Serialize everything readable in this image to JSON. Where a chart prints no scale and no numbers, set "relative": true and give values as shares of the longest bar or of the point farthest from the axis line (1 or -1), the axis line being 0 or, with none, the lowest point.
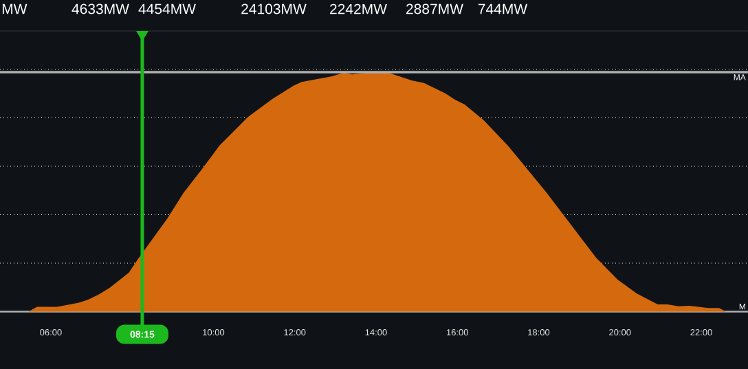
{
  "chart_data": {
    "type": "area",
    "relative": true,
    "color": "#d4690e",
    "grid": "y",
    "tick_labels": "x",
    "x": [
      5.45,
      5.66,
      6.16,
      6.69,
      6.92,
      7.18,
      7.45,
      7.92,
      8.15,
      8.86,
      9.26,
      9.74,
      10.15,
      10.85,
      11.45,
      11.97,
      12.17,
      12.9,
      13.21,
      13.41,
      13.8,
      14.0,
      14.3,
      14.89,
      15.18,
      15.71,
      15.94,
      16.18,
      16.65,
      17.24,
      18.18,
      18.65,
      19.41,
      19.94,
      20.41,
      20.93,
      21.17,
      21.44,
      21.7,
      21.93,
      22.17,
      22.44,
      22.61
    ],
    "values": [
      0,
      0.02,
      0.02,
      0.037,
      0.05,
      0.072,
      0.1,
      0.163,
      0.221,
      0.387,
      0.495,
      0.6,
      0.694,
      0.813,
      0.888,
      0.943,
      0.959,
      0.982,
      0.998,
      0.991,
      0.998,
      1,
      0.998,
      0.965,
      0.955,
      0.911,
      0.885,
      0.865,
      0.799,
      0.694,
      0.5,
      0.395,
      0.226,
      0.134,
      0.076,
      0.03,
      0.03,
      0.022,
      0.024,
      0.02,
      0.015,
      0.015,
      0
    ],
    "xlim": [
      4.75,
      23.15
    ],
    "xticks": [
      {
        "value": 6,
        "label": "06:00"
      },
      {
        "value": 10,
        "label": "10:00"
      },
      {
        "value": 12,
        "label": "12:00"
      },
      {
        "value": 14,
        "label": "14:00"
      },
      {
        "value": 16,
        "label": "16:00"
      },
      {
        "value": 18,
        "label": "18:00"
      },
      {
        "value": 20,
        "label": "20:00"
      },
      {
        "value": 22,
        "label": "22:00"
      }
    ],
    "ref_lines": [
      {
        "axis": "y",
        "value": 1,
        "label": "MA",
        "color": "#b0b0b0"
      },
      {
        "axis": "x",
        "value": 8.25,
        "label": "08:15",
        "color": "#1db81d"
      }
    ],
    "annotations": [
      "MW",
      "4633MW",
      "4454MW",
      "24103MW",
      "2242MW",
      "2887MW",
      "744MW",
      "M"
    ]
  }
}
